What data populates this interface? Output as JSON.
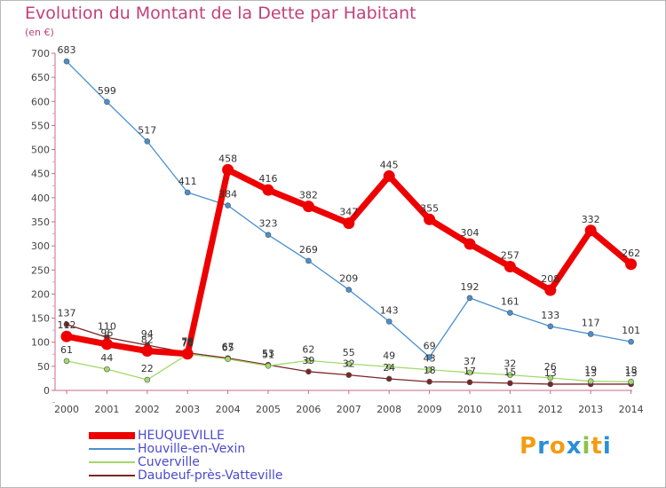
{
  "title": "Evolution du Montant de la Dette par Habitant",
  "unit": "(en €)",
  "logo": {
    "text": "Proxiti",
    "colors": [
      "#f39c12",
      "#2a8fd8",
      "#f39c12",
      "#2a8fd8",
      "#8bc34a",
      "#f39c12",
      "#2a8fd8"
    ]
  },
  "chart_data": {
    "type": "line",
    "categories": [
      "2000",
      "2001",
      "2002",
      "2003",
      "2004",
      "2005",
      "2006",
      "2007",
      "2008",
      "2009",
      "2010",
      "2011",
      "2012",
      "2013",
      "2014"
    ],
    "yticks": [
      "0",
      "50",
      "100",
      "150",
      "200",
      "250",
      "300",
      "350",
      "400",
      "450",
      "500",
      "550",
      "600",
      "650",
      "700"
    ],
    "ylim": [
      0,
      700
    ],
    "grid": false,
    "legend_position": "bottom-left",
    "series": [
      {
        "name": "Daubeuf-près-Vatteville",
        "color": "#7a2626",
        "values": [
          137,
          110,
          94,
          78,
          67,
          53,
          39,
          32,
          24,
          18,
          17,
          15,
          13,
          13,
          13
        ]
      },
      {
        "name": "Cuverville",
        "color": "#a3d86b",
        "values": [
          61,
          44,
          22,
          75,
          65,
          51,
          62,
          55,
          49,
          43,
          37,
          32,
          26,
          19,
          18
        ]
      },
      {
        "name": "Houville-en-Vexin",
        "color": "#4a8fcf",
        "values": [
          683,
          599,
          517,
          411,
          384,
          323,
          269,
          209,
          143,
          69,
          192,
          161,
          133,
          117,
          101
        ]
      },
      {
        "name": "HEUQUEVILLE",
        "color": "#ee0000",
        "values": [
          112,
          96,
          82,
          76,
          458,
          416,
          382,
          347,
          445,
          355,
          304,
          257,
          208,
          332,
          262
        ]
      }
    ],
    "data_labels": {
      "Daubeuf-près-Vatteville": [
        "137",
        "110",
        "94",
        "78",
        "67",
        "53",
        "39",
        "32",
        "24",
        "18",
        "17",
        "15",
        "13",
        "13",
        "13"
      ],
      "Cuverville": [
        "61",
        "44",
        "22",
        "75",
        "65",
        "51",
        "62",
        "55",
        "49",
        "43",
        "37",
        "32",
        "26",
        "19",
        "18"
      ],
      "Houville-en-Vexin": [
        "683",
        "599",
        "517",
        "411",
        "384",
        "323",
        "269",
        "209",
        "143",
        "69",
        "192",
        "161",
        "133",
        "117",
        "101"
      ],
      "HEUQUEVILLE": [
        "112",
        "96",
        "82",
        "76",
        "458",
        "416",
        "382",
        "347",
        "445",
        "355",
        "304",
        "257",
        "208",
        "332",
        "262"
      ]
    }
  },
  "legend": [
    {
      "label": "HEUQUEVILLE",
      "color": "#ee0000",
      "weight": "thick"
    },
    {
      "label": "Houville-en-Vexin",
      "color": "#4a8fcf",
      "weight": "thin"
    },
    {
      "label": "Cuverville",
      "color": "#a3d86b",
      "weight": "thin"
    },
    {
      "label": "Daubeuf-près-Vatteville",
      "color": "#7a2626",
      "weight": "thin"
    }
  ]
}
